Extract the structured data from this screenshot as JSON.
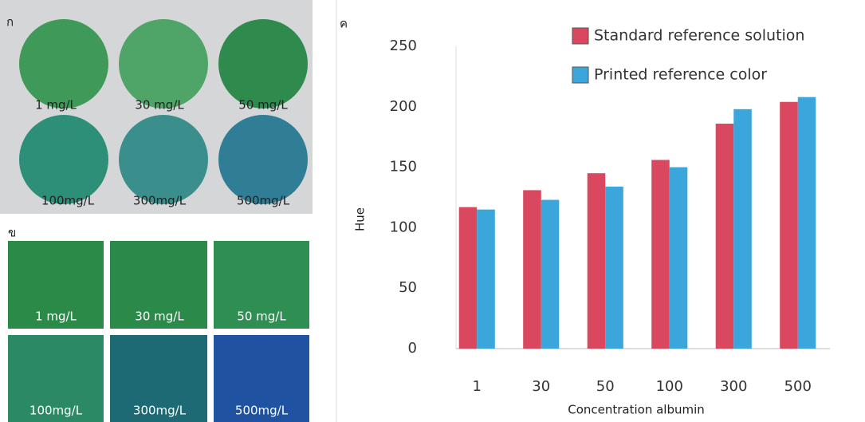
{
  "wells": {
    "label": "ก",
    "items": [
      "1 mg/L",
      "30 mg/L",
      "50 mg/L",
      "100mg/L",
      "300mg/L",
      "500mg/L"
    ]
  },
  "swatches": {
    "label": "ข",
    "items": [
      "1 mg/L",
      "30 mg/L",
      "50 mg/L",
      "100mg/L",
      "300mg/L",
      "500mg/L"
    ]
  },
  "chart_data": {
    "type": "bar",
    "panel_label": "ค",
    "xlabel": "Concentration albumin",
    "ylabel": "Hue",
    "categories": [
      "1",
      "30",
      "50",
      "100",
      "300",
      "500"
    ],
    "series": [
      {
        "name": "Standard reference solution",
        "color": "#d9485f",
        "values": [
          117,
          131,
          145,
          156,
          186,
          204
        ]
      },
      {
        "name": "Printed reference color",
        "color": "#3aa6db",
        "values": [
          115,
          123,
          134,
          150,
          198,
          208
        ]
      }
    ],
    "ylim": [
      0,
      250
    ],
    "yticks": [
      0,
      50,
      100,
      150,
      200,
      250
    ],
    "legend": "top-right"
  }
}
